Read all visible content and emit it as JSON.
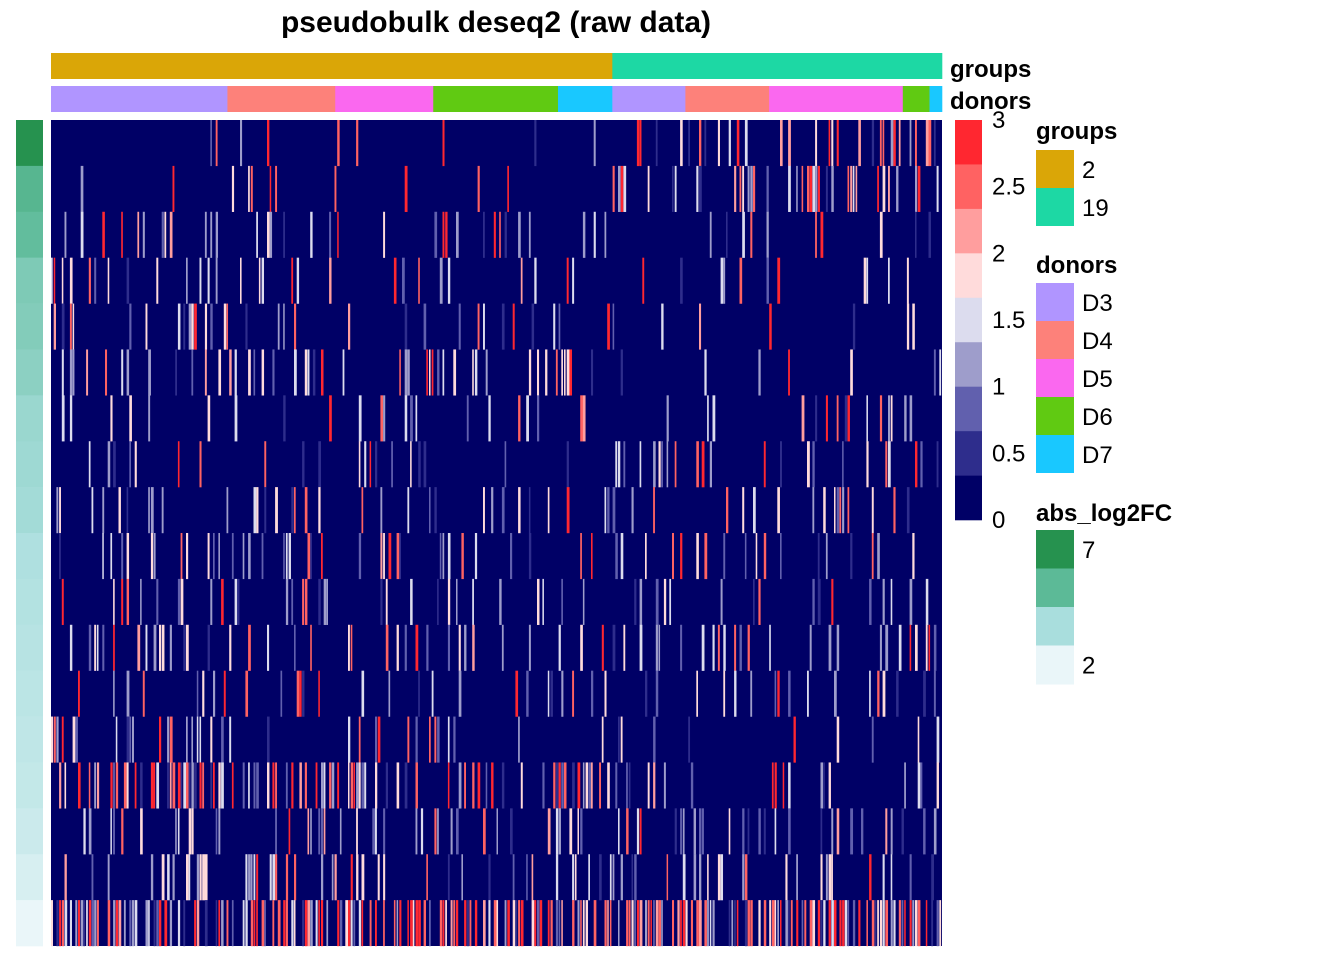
{
  "chart_data": {
    "type": "heatmap",
    "title": "pseudobulk deseq2 (raw data)",
    "n_rows": 18,
    "n_cols": 330,
    "column_annotations": [
      {
        "name": "groups",
        "segments": [
          {
            "label": "2",
            "fraction": 0.63,
            "color": "#DAA607"
          },
          {
            "label": "19",
            "fraction": 0.37,
            "color": "#1DD8A4"
          }
        ]
      },
      {
        "name": "donors",
        "segments": [
          {
            "label": "D3",
            "fraction": 0.198,
            "color": "#B095FF"
          },
          {
            "label": "D4",
            "fraction": 0.121,
            "color": "#FD817A"
          },
          {
            "label": "D5",
            "fraction": 0.11,
            "color": "#FA68EF"
          },
          {
            "label": "D6",
            "fraction": 0.14,
            "color": "#60CA12"
          },
          {
            "label": "D7",
            "fraction": 0.061,
            "color": "#19C8FF"
          },
          {
            "label": "D3",
            "fraction": 0.082,
            "color": "#B095FF"
          },
          {
            "label": "D4",
            "fraction": 0.094,
            "color": "#FD817A"
          },
          {
            "label": "D5",
            "fraction": 0.15,
            "color": "#FA68EF"
          },
          {
            "label": "D6",
            "fraction": 0.03,
            "color": "#60CA12"
          },
          {
            "label": "D7",
            "fraction": 0.014,
            "color": "#19C8FF"
          }
        ]
      }
    ],
    "row_annotation": {
      "name": "abs_log2FC",
      "values": [
        7.0,
        5.5,
        5.2,
        4.6,
        4.5,
        4.3,
        4.0,
        3.9,
        3.8,
        3.5,
        3.4,
        3.3,
        3.2,
        3.1,
        3.0,
        2.8,
        2.5,
        2.0
      ],
      "scale": [
        "#26924F",
        "#5CBA97",
        "#A9DEDD",
        "#EAF6F9"
      ],
      "legend_labels": [
        "7",
        "",
        "",
        "2"
      ]
    },
    "row_profiles": [
      {
        "left": [
          0.02,
          0.02
        ],
        "right": [
          0.12,
          0.1
        ]
      },
      {
        "left": [
          0.03,
          0.03
        ],
        "right": [
          0.14,
          0.1
        ]
      },
      {
        "left": [
          0.12,
          0.04
        ],
        "right": [
          0.04,
          0.02
        ]
      },
      {
        "left": [
          0.12,
          0.03
        ],
        "right": [
          0.05,
          0.02
        ]
      },
      {
        "left": [
          0.12,
          0.03
        ],
        "right": [
          0.06,
          0.02
        ]
      },
      {
        "left": [
          0.12,
          0.04
        ],
        "right": [
          0.07,
          0.02
        ]
      },
      {
        "left": [
          0.08,
          0.02
        ],
        "right": [
          0.1,
          0.03
        ]
      },
      {
        "left": [
          0.1,
          0.02
        ],
        "right": [
          0.12,
          0.05
        ]
      },
      {
        "left": [
          0.12,
          0.03
        ],
        "right": [
          0.12,
          0.04
        ]
      },
      {
        "left": [
          0.12,
          0.04
        ],
        "right": [
          0.1,
          0.03
        ]
      },
      {
        "left": [
          0.11,
          0.02
        ],
        "right": [
          0.12,
          0.02
        ]
      },
      {
        "left": [
          0.1,
          0.03
        ],
        "right": [
          0.1,
          0.03
        ]
      },
      {
        "left": [
          0.1,
          0.03
        ],
        "right": [
          0.11,
          0.02
        ]
      },
      {
        "left": [
          0.1,
          0.03
        ],
        "right": [
          0.1,
          0.03
        ]
      },
      {
        "left": [
          0.18,
          0.14
        ],
        "right": [
          0.15,
          0.06
        ]
      },
      {
        "left": [
          0.13,
          0.03
        ],
        "right": [
          0.15,
          0.03
        ]
      },
      {
        "left": [
          0.18,
          0.04
        ],
        "right": [
          0.18,
          0.04
        ]
      },
      {
        "left": [
          0.3,
          0.35
        ],
        "right": [
          0.3,
          0.35
        ]
      }
    ],
    "color_scale": {
      "breaks": [
        0,
        0.5,
        1,
        1.5,
        2,
        2.5,
        3
      ],
      "colors": [
        "#000066",
        "#2E2D8C",
        "#6160AE",
        "#9E9DCB",
        "#DCDCEE",
        "#FFDBDB",
        "#FF9E9E",
        "#FF6262",
        "#FF2730"
      ]
    },
    "legends": {
      "groups": {
        "title": "groups",
        "items": [
          {
            "label": "2",
            "color": "#DAA607"
          },
          {
            "label": "19",
            "color": "#1DD8A4"
          }
        ]
      },
      "donors": {
        "title": "donors",
        "items": [
          {
            "label": "D3",
            "color": "#B095FF"
          },
          {
            "label": "D4",
            "color": "#FD817A"
          },
          {
            "label": "D5",
            "color": "#FA68EF"
          },
          {
            "label": "D6",
            "color": "#60CA12"
          },
          {
            "label": "D7",
            "color": "#19C8FF"
          }
        ]
      },
      "abs_log2FC": {
        "title": "abs_log2FC"
      }
    }
  }
}
